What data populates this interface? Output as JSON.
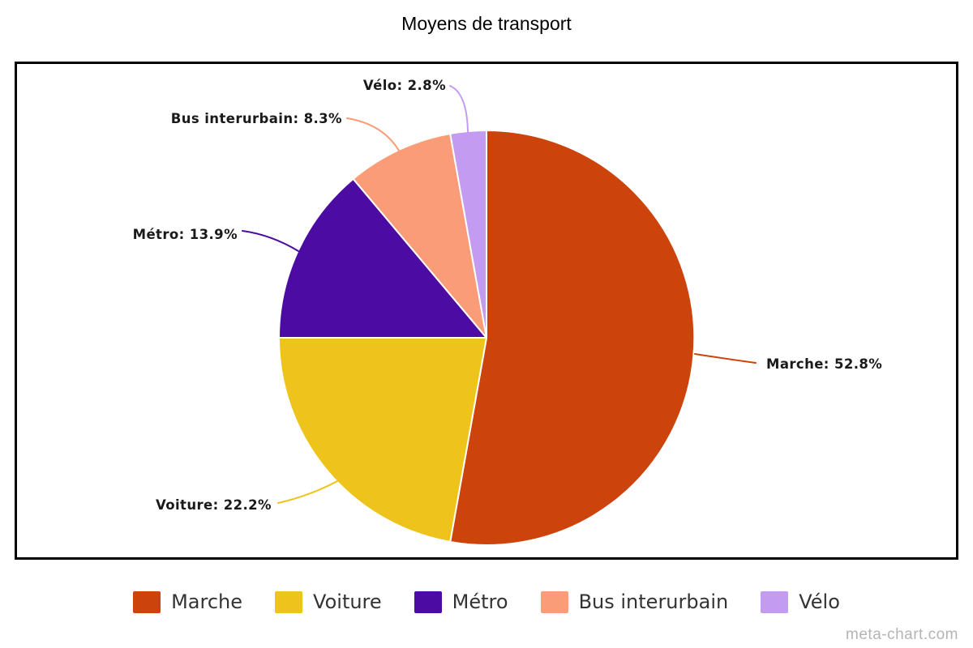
{
  "title": "Moyens de transport",
  "watermark": "meta-chart.com",
  "chart_data": {
    "type": "pie",
    "title": "Moyens de transport",
    "start_angle_deg": 0,
    "direction": "clockwise",
    "unit": "%",
    "categories": [
      "Marche",
      "Voiture",
      "Métro",
      "Bus interurbain",
      "Vélo"
    ],
    "values": [
      52.8,
      22.2,
      13.9,
      8.3,
      2.8
    ],
    "colors": [
      "#cc430b",
      "#edc31c",
      "#4c0ba3",
      "#fa9c78",
      "#c39bf0"
    ],
    "slice_labels": [
      "Marche: 52.8%",
      "Voiture: 22.2%",
      "Métro: 13.9%",
      "Bus interurbain: 8.3%",
      "Vélo: 2.8%"
    ],
    "slice_border_color": "#ffffff",
    "legend": {
      "position": "bottom",
      "entries": [
        "Marche",
        "Voiture",
        "Métro",
        "Bus interurbain",
        "Vélo"
      ]
    }
  }
}
